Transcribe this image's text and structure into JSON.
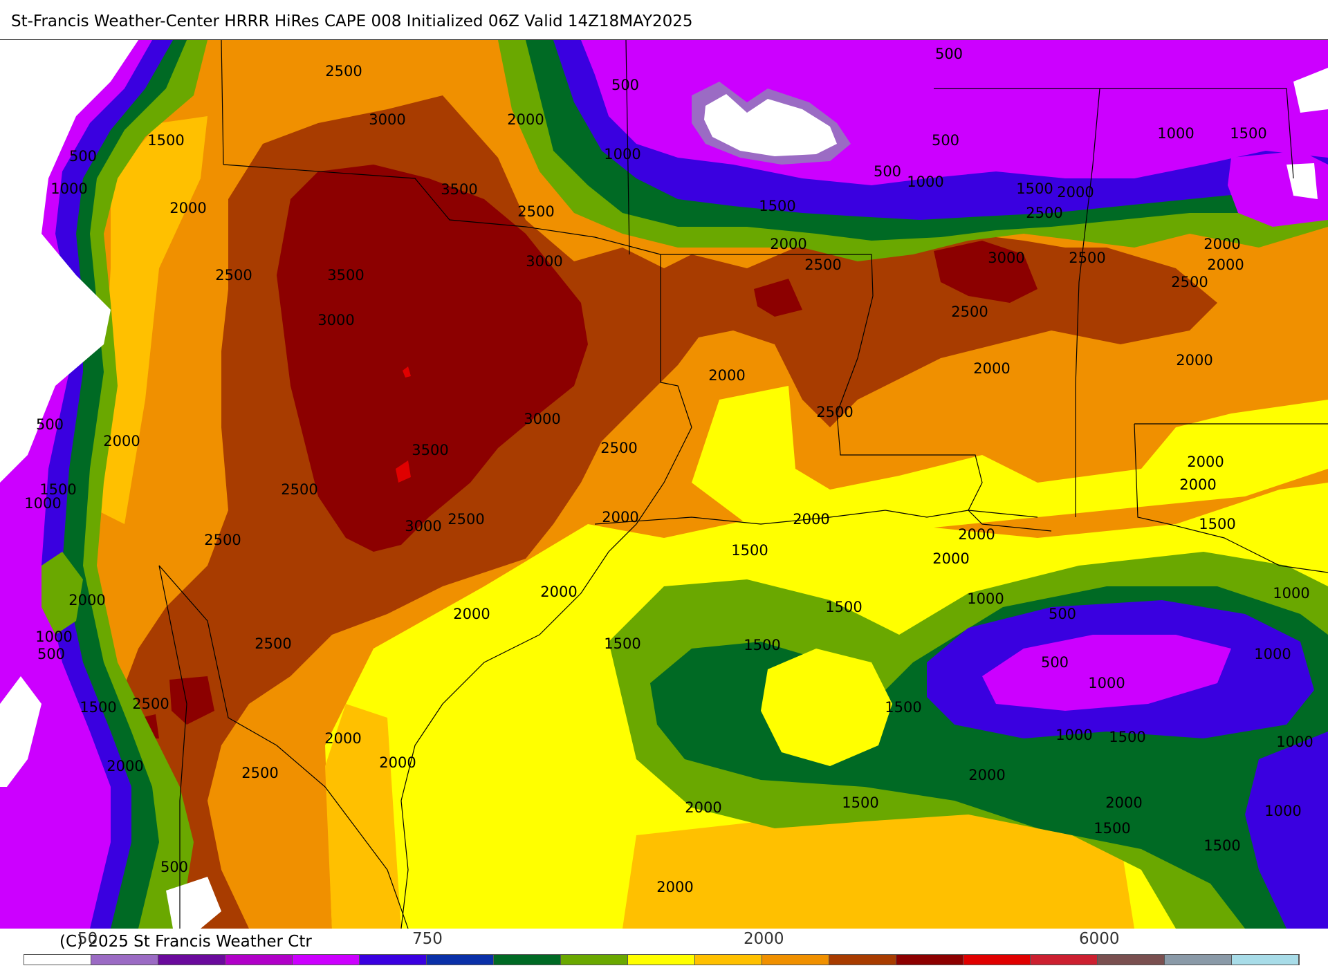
{
  "title": "St-Francis Weather-Center HRRR HiRes CAPE  008 Initialized  06Z Valid 14Z18MAY2025",
  "copyright": "(C) 2025 St Francis Weather Ctr",
  "colorbar": {
    "tick_labels": [
      "50",
      "750",
      "2000",
      "6000"
    ],
    "colors": [
      "#ffffff",
      "#9b6bc4",
      "#6a0a9c",
      "#b000c8",
      "#cc00ff",
      "#3a00e0",
      "#0a30a8",
      "#006a24",
      "#6aa800",
      "#ffff00",
      "#ffc000",
      "#f09000",
      "#a83c00",
      "#8c0000",
      "#e00000",
      "#cc2030",
      "#7a5050",
      "#8a9aa8",
      "#a8dce8"
    ]
  },
  "map": {
    "field": "CAPE",
    "palette": {
      "white": "#ffffff",
      "lavender": "#9b6bc4",
      "magenta": "#cc00ff",
      "blue": "#3a00e0",
      "navy": "#0a30a8",
      "darkgreen": "#006a24",
      "green": "#6aa800",
      "yellow": "#ffff00",
      "gold": "#ffc000",
      "orange": "#f09000",
      "brown": "#a83c00",
      "maroon": "#8c0000",
      "red": "#e00000"
    },
    "contour_labels": [
      {
        "text": "2500"
      },
      {
        "text": "3000"
      },
      {
        "text": "2000"
      },
      {
        "text": "500"
      },
      {
        "text": "500"
      },
      {
        "text": "1500"
      },
      {
        "text": "500"
      },
      {
        "text": "1000"
      },
      {
        "text": "1000"
      },
      {
        "text": "2000"
      },
      {
        "text": "3500"
      },
      {
        "text": "2500"
      },
      {
        "text": "500"
      },
      {
        "text": "1000"
      },
      {
        "text": "1500"
      },
      {
        "text": "500"
      },
      {
        "text": "1000"
      },
      {
        "text": "1500"
      },
      {
        "text": "2000"
      },
      {
        "text": "2500"
      },
      {
        "text": "1500"
      },
      {
        "text": "2500"
      },
      {
        "text": "3500"
      },
      {
        "text": "3000"
      },
      {
        "text": "2000"
      },
      {
        "text": "2500"
      },
      {
        "text": "3000"
      },
      {
        "text": "2500"
      },
      {
        "text": "2000"
      },
      {
        "text": "2000"
      },
      {
        "text": "2500"
      },
      {
        "text": "3000"
      },
      {
        "text": "2500"
      },
      {
        "text": "2000"
      },
      {
        "text": "2000"
      },
      {
        "text": "2000"
      },
      {
        "text": "2500"
      },
      {
        "text": "500"
      },
      {
        "text": "3000"
      },
      {
        "text": "2000"
      },
      {
        "text": "3500"
      },
      {
        "text": "2500"
      },
      {
        "text": "1500"
      },
      {
        "text": "1000"
      },
      {
        "text": "2500"
      },
      {
        "text": "2000"
      },
      {
        "text": "2000"
      },
      {
        "text": "2500"
      },
      {
        "text": "3000"
      },
      {
        "text": "2500"
      },
      {
        "text": "2000"
      },
      {
        "text": "2000"
      },
      {
        "text": "1500"
      },
      {
        "text": "2000"
      },
      {
        "text": "1500"
      },
      {
        "text": "2000"
      },
      {
        "text": "2000"
      },
      {
        "text": "2000"
      },
      {
        "text": "2000"
      },
      {
        "text": "1500"
      },
      {
        "text": "1500"
      },
      {
        "text": "1000"
      },
      {
        "text": "500"
      },
      {
        "text": "1000"
      },
      {
        "text": "1000"
      },
      {
        "text": "500"
      },
      {
        "text": "500"
      },
      {
        "text": "2500"
      },
      {
        "text": "1500"
      },
      {
        "text": "1000"
      },
      {
        "text": "2500"
      },
      {
        "text": "1500"
      },
      {
        "text": "1000"
      },
      {
        "text": "2000"
      },
      {
        "text": "2000"
      },
      {
        "text": "2500"
      },
      {
        "text": "2000"
      },
      {
        "text": "1500"
      },
      {
        "text": "2000"
      },
      {
        "text": "1000"
      },
      {
        "text": "2000"
      },
      {
        "text": "1500"
      },
      {
        "text": "1500"
      },
      {
        "text": "1000"
      },
      {
        "text": "1500"
      },
      {
        "text": "500"
      },
      {
        "text": "2000"
      },
      {
        "text": "1000"
      },
      {
        "text": "1500"
      },
      {
        "text": "2000"
      }
    ]
  }
}
